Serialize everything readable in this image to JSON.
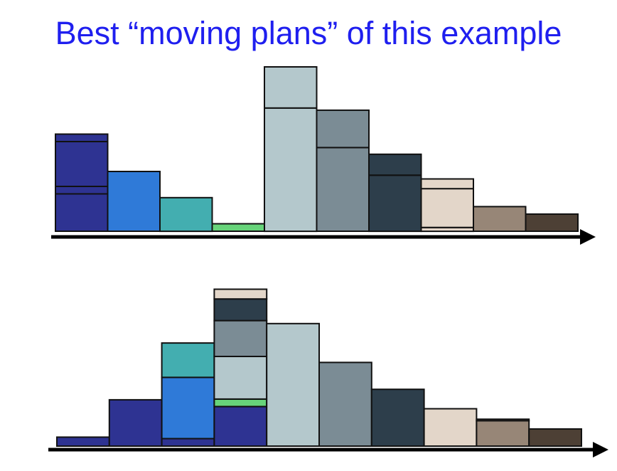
{
  "title": "Best “moving plans” of this example",
  "colors": {
    "title": "#1f1fef",
    "outline": "#111111",
    "axis": "#000000",
    "c0": "#2e3392",
    "c1": "#2f7ad8",
    "c2": "#43aeb0",
    "c3": "#67d47a",
    "c4": "#b4c8cc",
    "c5": "#7b8c95",
    "c6": "#2d3e4b",
    "c7": "#e3d6c9",
    "c8": "#978677",
    "c9": "#4d4035"
  },
  "diagrams": [
    {
      "name": "before",
      "column_count": 10,
      "columns": [
        [
          {
            "c": "c0",
            "h": 5
          },
          {
            "c": "c0",
            "h": 1
          },
          {
            "c": "c0",
            "h": 6
          },
          {
            "c": "c0",
            "h": 1
          }
        ],
        [
          {
            "c": "c1",
            "h": 8
          }
        ],
        [
          {
            "c": "c2",
            "h": 4.5
          }
        ],
        [
          {
            "c": "c3",
            "h": 1
          }
        ],
        [
          {
            "c": "c4",
            "h": 16.5
          },
          {
            "c": "c4",
            "h": 5.5
          }
        ],
        [
          {
            "c": "c5",
            "h": 11.2
          },
          {
            "c": "c5",
            "h": 5
          }
        ],
        [
          {
            "c": "c6",
            "h": 7.5
          },
          {
            "c": "c6",
            "h": 2.8
          }
        ],
        [
          {
            "c": "c7",
            "h": 0.5
          },
          {
            "c": "c7",
            "h": 5.2
          },
          {
            "c": "c7",
            "h": 1.3
          }
        ],
        [
          {
            "c": "c8",
            "h": 3.3
          }
        ],
        [
          {
            "c": "c9",
            "h": 2.3
          }
        ]
      ]
    },
    {
      "name": "after",
      "column_count": 10,
      "columns": [
        [
          {
            "c": "c0",
            "h": 1.2
          }
        ],
        [
          {
            "c": "c0",
            "h": 6.2
          }
        ],
        [
          {
            "c": "c0",
            "h": 1.0
          },
          {
            "c": "c1",
            "h": 8.2
          },
          {
            "c": "c2",
            "h": 4.6
          }
        ],
        [
          {
            "c": "c0",
            "h": 5.3
          },
          {
            "c": "c3",
            "h": 1.0
          },
          {
            "c": "c4",
            "h": 5.7
          },
          {
            "c": "c5",
            "h": 4.8
          },
          {
            "c": "c6",
            "h": 2.9
          },
          {
            "c": "c7",
            "h": 1.3
          }
        ],
        [
          {
            "c": "c4",
            "h": 16.4
          }
        ],
        [
          {
            "c": "c5",
            "h": 11.2
          }
        ],
        [
          {
            "c": "c6",
            "h": 7.6
          }
        ],
        [
          {
            "c": "c7",
            "h": 5.0
          }
        ],
        [
          {
            "c": "c8",
            "h": 3.4
          },
          {
            "c": "c8",
            "h": 0.2
          }
        ],
        [
          {
            "c": "c9",
            "h": 2.3
          }
        ]
      ]
    }
  ]
}
